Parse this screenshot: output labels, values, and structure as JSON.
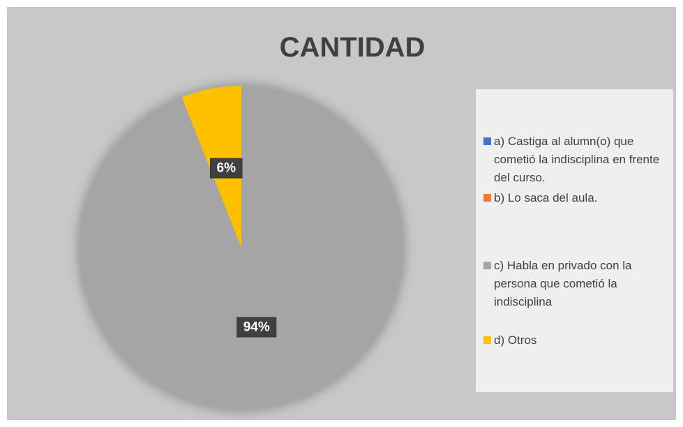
{
  "chart_data": {
    "type": "pie",
    "title": "CANTIDAD",
    "categories": [
      "a) Castiga al alumn(o) que cometió la indisciplina en frente del curso.",
      "b) Lo saca del aula.",
      "c) Habla en privado con la persona que cometió la indisciplina",
      "d) Otros"
    ],
    "values": [
      0,
      0,
      94,
      6
    ],
    "value_labels": [
      null,
      null,
      "94%",
      "6%"
    ],
    "colors": [
      "#4472c4",
      "#ed7d31",
      "#a5a5a5",
      "#ffc000"
    ],
    "legend": "right"
  }
}
